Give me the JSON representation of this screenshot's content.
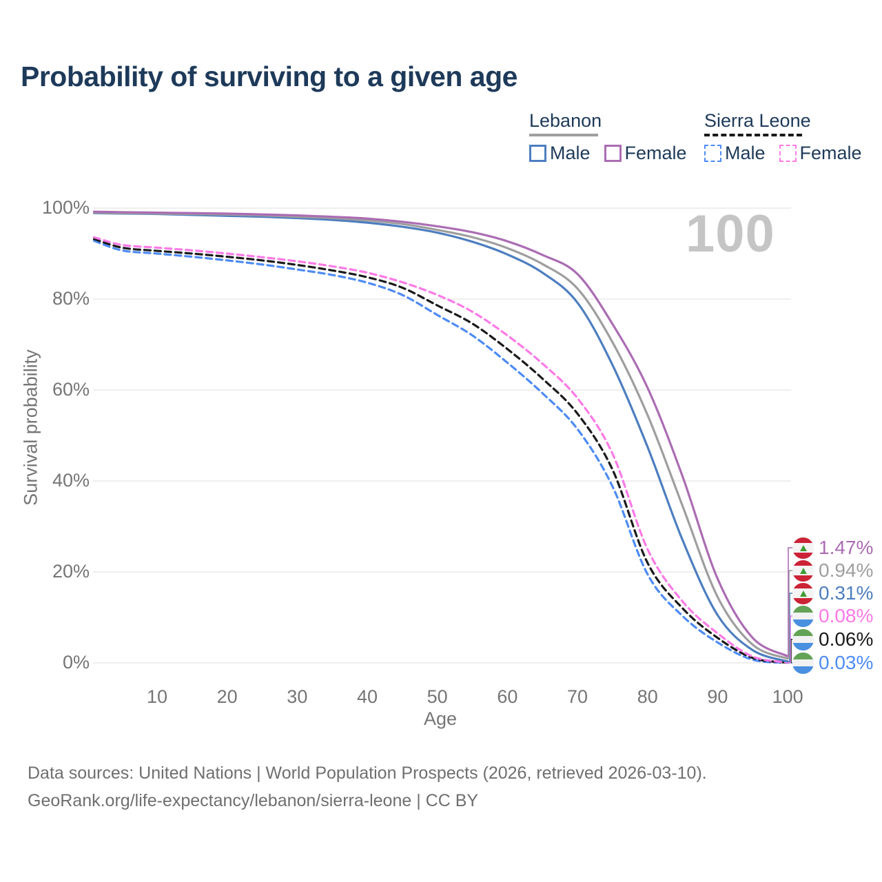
{
  "title": "Probability of surviving to a given age",
  "annotation": {
    "hover_age_label": "100"
  },
  "legend": {
    "groups": [
      {
        "label": "Lebanon",
        "line_style": "solid",
        "line_color": "#9e9e9e",
        "items": [
          {
            "label": "Male",
            "color": "#4d7ec0"
          },
          {
            "label": "Female",
            "color": "#ab6cb3"
          }
        ]
      },
      {
        "label": "Sierra Leone",
        "line_style": "dashed",
        "line_color": "#1a1a1a",
        "items": [
          {
            "label": "Male",
            "color": "#4d8bf5"
          },
          {
            "label": "Female",
            "color": "#fd7ae7"
          }
        ]
      }
    ]
  },
  "y_axis": {
    "title": "Survival probability",
    "tick_labels": [
      "0%",
      "20%",
      "40%",
      "60%",
      "80%",
      "100%"
    ]
  },
  "x_axis": {
    "title": "Age",
    "tick_values": [
      10,
      20,
      30,
      40,
      50,
      60,
      70,
      80,
      90,
      100
    ]
  },
  "end_labels": [
    {
      "value": "1.47%",
      "color": "#ab6cb3",
      "flag": "lebanon",
      "series": "leb_female"
    },
    {
      "value": "0.94%",
      "color": "#9e9e9e",
      "flag": "lebanon",
      "series": "leb_all"
    },
    {
      "value": "0.31%",
      "color": "#4d7ec0",
      "flag": "lebanon",
      "series": "leb_male"
    },
    {
      "value": "0.08%",
      "color": "#fd7ae7",
      "flag": "sierra-leone",
      "series": "sl_female"
    },
    {
      "value": "0.06%",
      "color": "#1a1a1a",
      "flag": "sierra-leone",
      "series": "sl_all"
    },
    {
      "value": "0.03%",
      "color": "#4d8bf5",
      "flag": "sierra-leone",
      "series": "sl_male"
    }
  ],
  "footer": {
    "line1": "Data sources: United Nations | World Population Prospects (2026, retrieved 2026-03-10).",
    "line2": "GeoRank.org/life-expectancy/lebanon/sierra-leone | CC BY"
  },
  "chart_data": {
    "type": "line",
    "title": "Probability of surviving to a given age",
    "xlabel": "Age",
    "ylabel": "Survival probability",
    "xlim": [
      0,
      100
    ],
    "ylim_percent": [
      0,
      100
    ],
    "grid": true,
    "legend_position": "top-right",
    "ages": [
      1,
      5,
      10,
      15,
      20,
      25,
      30,
      35,
      40,
      45,
      50,
      55,
      60,
      65,
      70,
      75,
      80,
      85,
      90,
      95,
      100
    ],
    "series": [
      {
        "id": "sl_male",
        "name": "Sierra Leone Male",
        "country": "Sierra Leone",
        "sex": "Male",
        "style": "dashed",
        "color": "#4d8bf5",
        "end_value_percent": 0.03,
        "values": [
          92.8,
          90.7,
          90.0,
          89.3,
          88.5,
          87.6,
          86.5,
          85.3,
          83.6,
          80.9,
          76.5,
          72.0,
          66.0,
          59.3,
          51.4,
          38.8,
          19.5,
          10.3,
          4.5,
          0.7,
          0.03
        ]
      },
      {
        "id": "sl_all",
        "name": "Sierra Leone Both sexes",
        "country": "Sierra Leone",
        "sex": "Both",
        "style": "dashed",
        "color": "#1a1a1a",
        "end_value_percent": 0.06,
        "values": [
          93.2,
          91.3,
          90.6,
          90.0,
          89.3,
          88.5,
          87.5,
          86.3,
          84.8,
          82.5,
          78.6,
          74.6,
          69.0,
          62.5,
          54.8,
          42.5,
          22.0,
          12.0,
          5.5,
          1.1,
          0.06
        ]
      },
      {
        "id": "sl_female",
        "name": "Sierra Leone Female",
        "country": "Sierra Leone",
        "sex": "Female",
        "style": "dashed",
        "color": "#fd7ae7",
        "end_value_percent": 0.08,
        "values": [
          93.6,
          91.9,
          91.3,
          90.7,
          90.0,
          89.2,
          88.3,
          87.2,
          85.8,
          83.7,
          80.9,
          77.2,
          72.0,
          65.8,
          58.2,
          46.0,
          25.0,
          13.5,
          6.5,
          1.4,
          0.08
        ]
      },
      {
        "id": "leb_male",
        "name": "Lebanon Male",
        "country": "Lebanon",
        "sex": "Male",
        "style": "solid",
        "color": "#4d7ec0",
        "end_value_percent": 0.31,
        "values": [
          98.9,
          98.8,
          98.7,
          98.5,
          98.3,
          98.1,
          97.8,
          97.4,
          96.8,
          95.9,
          94.6,
          92.6,
          89.8,
          85.8,
          79.2,
          65.5,
          47.5,
          27.0,
          10.5,
          2.8,
          0.31
        ]
      },
      {
        "id": "leb_all",
        "name": "Lebanon Both sexes",
        "country": "Lebanon",
        "sex": "Both",
        "style": "solid",
        "color": "#9e9e9e",
        "end_value_percent": 0.94,
        "values": [
          99.0,
          98.9,
          98.8,
          98.7,
          98.6,
          98.4,
          98.1,
          97.8,
          97.3,
          96.5,
          95.2,
          93.6,
          91.2,
          87.7,
          82.3,
          70.5,
          54.5,
          34.5,
          14.5,
          4.0,
          0.94
        ]
      },
      {
        "id": "leb_female",
        "name": "Lebanon Female",
        "country": "Lebanon",
        "sex": "Female",
        "style": "solid",
        "color": "#ab6cb3",
        "end_value_percent": 1.47,
        "values": [
          99.2,
          99.1,
          99.0,
          98.9,
          98.8,
          98.6,
          98.4,
          98.1,
          97.7,
          97.0,
          96.0,
          94.7,
          92.7,
          89.7,
          85.5,
          74.5,
          60.5,
          41.0,
          18.5,
          5.5,
          1.47
        ]
      }
    ]
  }
}
